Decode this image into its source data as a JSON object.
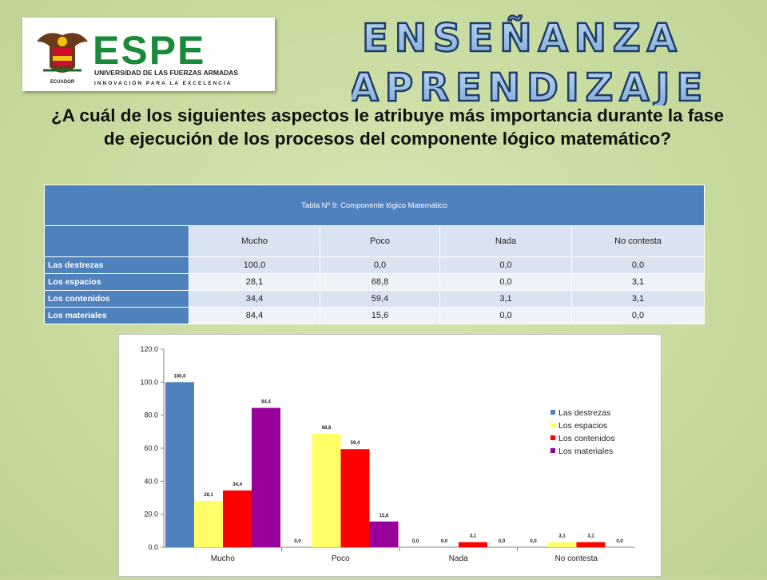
{
  "logo": {
    "name": "ESPE",
    "subtitle": "UNIVERSIDAD DE LAS FUERZAS ARMADAS",
    "tagline": "INNOVACIÓN PARA LA EXCELENCIA",
    "country": "ECUADOR"
  },
  "banner": {
    "line1": "ENSEÑANZA",
    "line2": "APRENDIZAJE"
  },
  "question": "¿A cuál de los siguientes aspectos le atribuye más importancia durante la fase de ejecución de los procesos del componente lógico matemático?",
  "table": {
    "title": "Tabla Nº 9: Componente lógico Matemático",
    "headers": [
      "Mucho",
      "Poco",
      "Nada",
      "No contesta"
    ],
    "rows": [
      {
        "label": "Las destrezas",
        "values": [
          "100,0",
          "0,0",
          "0,0",
          "0,0"
        ]
      },
      {
        "label": "Los espacios",
        "values": [
          "28,1",
          "68,8",
          "0,0",
          "3,1"
        ]
      },
      {
        "label": "Los contenidos",
        "values": [
          "34,4",
          "59,4",
          "3,1",
          "3,1"
        ]
      },
      {
        "label": "Los materiales",
        "values": [
          "84,4",
          "15,6",
          "0,0",
          "0,0"
        ]
      }
    ]
  },
  "chart_data": {
    "type": "bar",
    "categories": [
      "Mucho",
      "Poco",
      "Nada",
      "No contesta"
    ],
    "series": [
      {
        "name": "Las destrezas",
        "values": [
          100.0,
          0.0,
          0.0,
          0.0
        ],
        "color": "#4f81bd"
      },
      {
        "name": "Los espacios",
        "values": [
          28.1,
          68.8,
          0.0,
          3.1
        ],
        "color": "#ffff66"
      },
      {
        "name": "Los contenidos",
        "values": [
          34.4,
          59.4,
          3.1,
          3.1
        ],
        "color": "#ff0000"
      },
      {
        "name": "Los materiales",
        "values": [
          84.4,
          15.6,
          0.0,
          0.0
        ],
        "color": "#990099"
      }
    ],
    "value_labels": [
      [
        "100,0",
        "0,0",
        "0,0",
        "0,0"
      ],
      [
        "28,1",
        "68,8",
        "0,0",
        "3,1"
      ],
      [
        "34,4",
        "59,4",
        "3,1",
        "3,1"
      ],
      [
        "84,4",
        "15,6",
        "0,0",
        "0,0"
      ]
    ],
    "yticks": [
      "0.0",
      "20.0",
      "40.0",
      "60.0",
      "80.0",
      "100.0",
      "120.0"
    ],
    "ylim": [
      0,
      120
    ],
    "grid": false,
    "legend_position": "right"
  }
}
